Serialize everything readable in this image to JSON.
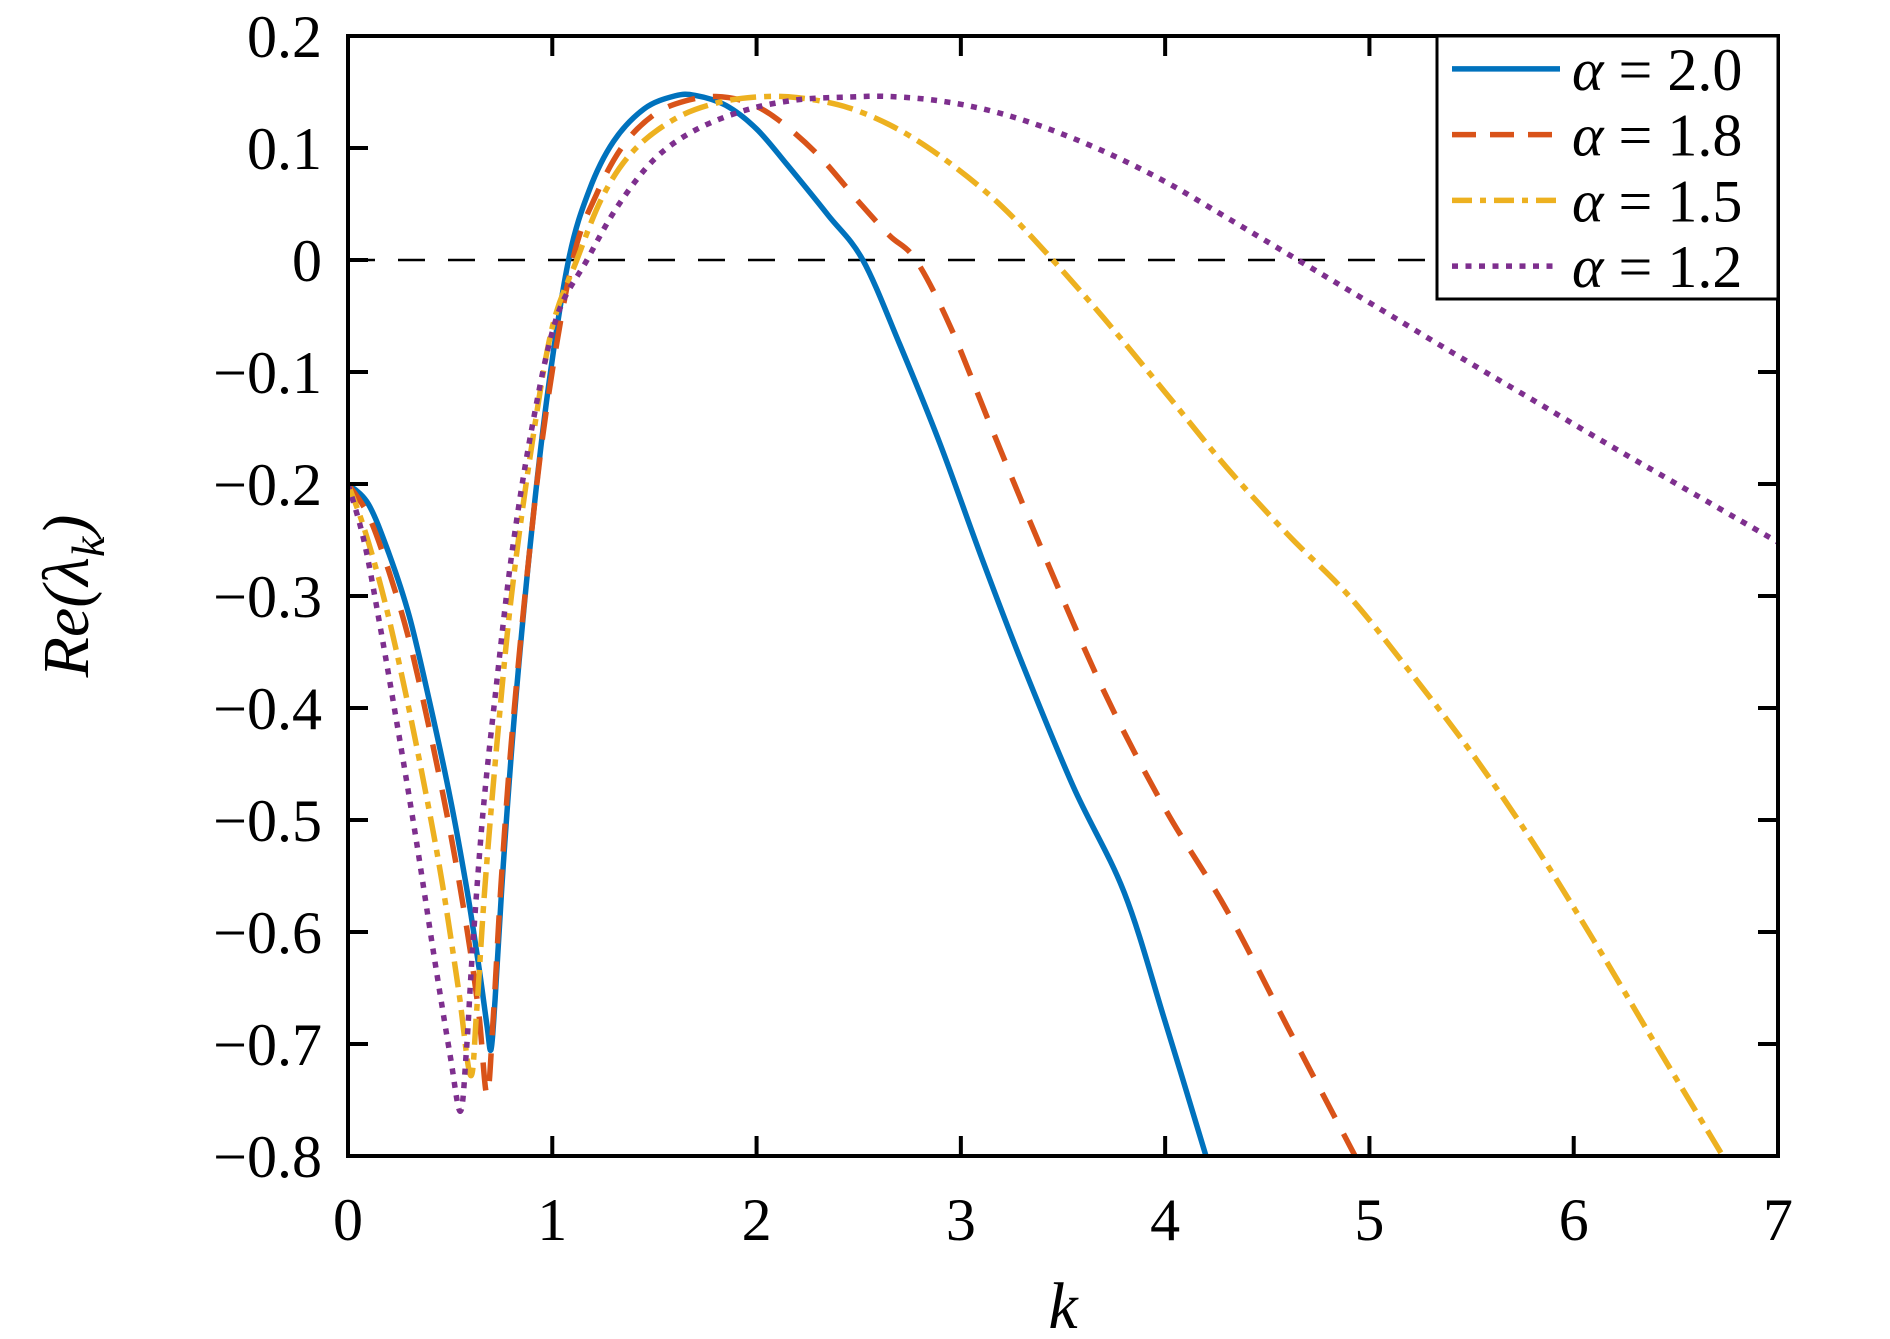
{
  "figure": {
    "ylabel_pre": "Re(λ",
    "ylabel_sub": "k",
    "ylabel_post": ")"
  },
  "chart_data": {
    "type": "line",
    "title": "",
    "xlabel": "k",
    "ylabel": "Re(λ_k)",
    "xlim": [
      0,
      7
    ],
    "ylim": [
      -0.8,
      0.2
    ],
    "grid": false,
    "xticks": [
      0,
      1,
      2,
      3,
      4,
      5,
      6,
      7
    ],
    "xtick_labels": [
      "0",
      "1",
      "2",
      "3",
      "4",
      "5",
      "6",
      "7"
    ],
    "yticks": [
      0.2,
      0.1,
      0,
      -0.1,
      -0.2,
      -0.3,
      -0.4,
      -0.5,
      -0.6,
      -0.7,
      -0.8
    ],
    "ytick_labels": [
      "0.2",
      "0.1",
      "0",
      "−0.1",
      "−0.2",
      "−0.3",
      "−0.4",
      "−0.5",
      "−0.6",
      "−0.7",
      "−0.8"
    ],
    "zero_line": {
      "value": 0,
      "style": "dashed",
      "color": "#000000"
    },
    "legend": {
      "position": "top-right",
      "border": true
    },
    "axis_color": "#000000",
    "series": [
      {
        "name": "alpha-2.0",
        "label": "α = 2.0",
        "label_sym": "α",
        "label_rest": " = 2.0",
        "color": "#0072BD",
        "style": "solid",
        "points": [
          [
            0,
            -0.2
          ],
          [
            0.1,
            -0.218
          ],
          [
            0.2,
            -0.262
          ],
          [
            0.3,
            -0.318
          ],
          [
            0.4,
            -0.395
          ],
          [
            0.5,
            -0.48
          ],
          [
            0.58,
            -0.56
          ],
          [
            0.64,
            -0.63
          ],
          [
            0.68,
            -0.683
          ],
          [
            0.7,
            -0.705
          ],
          [
            0.72,
            -0.66
          ],
          [
            0.76,
            -0.54
          ],
          [
            0.82,
            -0.395
          ],
          [
            0.9,
            -0.24
          ],
          [
            0.98,
            -0.115
          ],
          [
            1.08,
            0
          ],
          [
            1.18,
            0.062
          ],
          [
            1.3,
            0.106
          ],
          [
            1.45,
            0.135
          ],
          [
            1.6,
            0.1465
          ],
          [
            1.7,
            0.147
          ],
          [
            1.85,
            0.138
          ],
          [
            2.0,
            0.117
          ],
          [
            2.15,
            0.085
          ],
          [
            2.35,
            0.04
          ],
          [
            2.52,
            0
          ],
          [
            2.7,
            -0.075
          ],
          [
            2.9,
            -0.165
          ],
          [
            3.1,
            -0.265
          ],
          [
            3.3,
            -0.36
          ],
          [
            3.55,
            -0.47
          ],
          [
            3.8,
            -0.565
          ],
          [
            4.0,
            -0.68
          ],
          [
            4.2,
            -0.8
          ]
        ]
      },
      {
        "name": "alpha-1.8",
        "label": "α = 1.8",
        "label_sym": "α",
        "label_rest": " = 1.8",
        "color": "#D95319",
        "style": "dashed",
        "points": [
          [
            0,
            -0.2
          ],
          [
            0.1,
            -0.228
          ],
          [
            0.2,
            -0.278
          ],
          [
            0.3,
            -0.34
          ],
          [
            0.4,
            -0.42
          ],
          [
            0.5,
            -0.51
          ],
          [
            0.58,
            -0.595
          ],
          [
            0.64,
            -0.672
          ],
          [
            0.68,
            -0.745
          ],
          [
            0.71,
            -0.68
          ],
          [
            0.75,
            -0.555
          ],
          [
            0.8,
            -0.43
          ],
          [
            0.88,
            -0.275
          ],
          [
            0.97,
            -0.135
          ],
          [
            1.1,
            0
          ],
          [
            1.22,
            0.06
          ],
          [
            1.35,
            0.103
          ],
          [
            1.5,
            0.13
          ],
          [
            1.65,
            0.142
          ],
          [
            1.8,
            0.146
          ],
          [
            1.95,
            0.141
          ],
          [
            2.1,
            0.126
          ],
          [
            2.3,
            0.094
          ],
          [
            2.5,
            0.052
          ],
          [
            2.65,
            0.022
          ],
          [
            2.78,
            0
          ],
          [
            2.95,
            -0.06
          ],
          [
            3.15,
            -0.15
          ],
          [
            3.4,
            -0.26
          ],
          [
            3.7,
            -0.385
          ],
          [
            4.0,
            -0.49
          ],
          [
            4.3,
            -0.58
          ],
          [
            4.6,
            -0.685
          ],
          [
            4.93,
            -0.8
          ]
        ]
      },
      {
        "name": "alpha-1.5",
        "label": "α = 1.5",
        "label_sym": "α",
        "label_rest": " = 1.5",
        "color": "#EDB120",
        "style": "dashdot",
        "points": [
          [
            0,
            -0.2
          ],
          [
            0.08,
            -0.24
          ],
          [
            0.18,
            -0.305
          ],
          [
            0.28,
            -0.385
          ],
          [
            0.38,
            -0.475
          ],
          [
            0.46,
            -0.555
          ],
          [
            0.54,
            -0.65
          ],
          [
            0.6,
            -0.728
          ],
          [
            0.63,
            -0.67
          ],
          [
            0.67,
            -0.56
          ],
          [
            0.73,
            -0.43
          ],
          [
            0.8,
            -0.3
          ],
          [
            0.9,
            -0.165
          ],
          [
            1.0,
            -0.06
          ],
          [
            1.12,
            0
          ],
          [
            1.25,
            0.058
          ],
          [
            1.4,
            0.098
          ],
          [
            1.6,
            0.126
          ],
          [
            1.8,
            0.14
          ],
          [
            2.0,
            0.1455
          ],
          [
            2.2,
            0.145
          ],
          [
            2.45,
            0.136
          ],
          [
            2.7,
            0.116
          ],
          [
            2.95,
            0.086
          ],
          [
            3.2,
            0.048
          ],
          [
            3.45,
            0
          ],
          [
            3.7,
            -0.052
          ],
          [
            4.0,
            -0.118
          ],
          [
            4.3,
            -0.185
          ],
          [
            4.6,
            -0.245
          ],
          [
            4.9,
            -0.3
          ],
          [
            5.2,
            -0.368
          ],
          [
            5.5,
            -0.44
          ],
          [
            5.8,
            -0.52
          ],
          [
            6.1,
            -0.608
          ],
          [
            6.4,
            -0.7
          ],
          [
            6.73,
            -0.8
          ]
        ]
      },
      {
        "name": "alpha-1.2",
        "label": "α = 1.2",
        "label_sym": "α",
        "label_rest": " = 1.2",
        "color": "#7E2F8E",
        "style": "dotted",
        "points": [
          [
            0,
            -0.2
          ],
          [
            0.08,
            -0.252
          ],
          [
            0.16,
            -0.33
          ],
          [
            0.25,
            -0.425
          ],
          [
            0.34,
            -0.525
          ],
          [
            0.42,
            -0.62
          ],
          [
            0.5,
            -0.71
          ],
          [
            0.55,
            -0.76
          ],
          [
            0.58,
            -0.705
          ],
          [
            0.61,
            -0.615
          ],
          [
            0.66,
            -0.495
          ],
          [
            0.72,
            -0.39
          ],
          [
            0.8,
            -0.265
          ],
          [
            0.9,
            -0.15
          ],
          [
            1.02,
            -0.052
          ],
          [
            1.17,
            0
          ],
          [
            1.32,
            0.048
          ],
          [
            1.5,
            0.09
          ],
          [
            1.7,
            0.116
          ],
          [
            1.95,
            0.134
          ],
          [
            2.2,
            0.143
          ],
          [
            2.45,
            0.1455
          ],
          [
            2.65,
            0.146
          ],
          [
            2.9,
            0.142
          ],
          [
            3.15,
            0.133
          ],
          [
            3.4,
            0.119
          ],
          [
            3.7,
            0.097
          ],
          [
            4.0,
            0.07
          ],
          [
            4.3,
            0.038
          ],
          [
            4.65,
            0
          ],
          [
            5.0,
            -0.038
          ],
          [
            5.4,
            -0.082
          ],
          [
            5.8,
            -0.125
          ],
          [
            6.2,
            -0.168
          ],
          [
            6.6,
            -0.21
          ],
          [
            7.0,
            -0.252
          ]
        ]
      }
    ]
  }
}
